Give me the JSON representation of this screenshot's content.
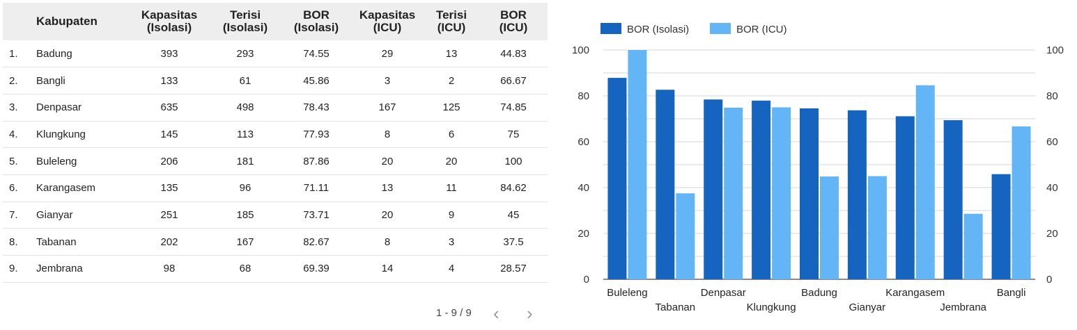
{
  "table": {
    "headers": [
      {
        "key": "no",
        "label": ""
      },
      {
        "key": "kabupaten",
        "label": "Kabupaten"
      },
      {
        "key": "kap_iso",
        "label": "Kapasitas (Isolasi)"
      },
      {
        "key": "ter_iso",
        "label": "Terisi (Isolasi)"
      },
      {
        "key": "bor_iso",
        "label": "BOR (Isolasi)"
      },
      {
        "key": "kap_icu",
        "label": "Kapasitas (ICU)"
      },
      {
        "key": "ter_icu",
        "label": "Terisi (ICU)"
      },
      {
        "key": "bor_icu",
        "label": "BOR (ICU)"
      }
    ],
    "rows": [
      [
        "1.",
        "Badung",
        "393",
        "293",
        "74.55",
        "29",
        "13",
        "44.83"
      ],
      [
        "2.",
        "Bangli",
        "133",
        "61",
        "45.86",
        "3",
        "2",
        "66.67"
      ],
      [
        "3.",
        "Denpasar",
        "635",
        "498",
        "78.43",
        "167",
        "125",
        "74.85"
      ],
      [
        "4.",
        "Klungkung",
        "145",
        "113",
        "77.93",
        "8",
        "6",
        "75"
      ],
      [
        "5.",
        "Buleleng",
        "206",
        "181",
        "87.86",
        "20",
        "20",
        "100"
      ],
      [
        "6.",
        "Karangasem",
        "135",
        "96",
        "71.11",
        "13",
        "11",
        "84.62"
      ],
      [
        "7.",
        "Gianyar",
        "251",
        "185",
        "73.71",
        "20",
        "9",
        "45"
      ],
      [
        "8.",
        "Tabanan",
        "202",
        "167",
        "82.67",
        "8",
        "3",
        "37.5"
      ],
      [
        "9.",
        "Jembrana",
        "98",
        "68",
        "69.39",
        "14",
        "4",
        "28.57"
      ]
    ]
  },
  "pagination": {
    "label": "1 - 9 / 9",
    "prev_icon": "chevron-left-icon",
    "next_icon": "chevron-right-icon"
  },
  "chart_data": {
    "type": "bar",
    "categories": [
      "Buleleng",
      "Tabanan",
      "Denpasar",
      "Klungkung",
      "Badung",
      "Gianyar",
      "Karangasem",
      "Jembrana",
      "Bangli"
    ],
    "series": [
      {
        "name": "BOR (Isolasi)",
        "values": [
          87.86,
          82.67,
          78.43,
          77.93,
          74.55,
          73.71,
          71.11,
          69.39,
          45.86
        ],
        "color": "#1565c0"
      },
      {
        "name": "BOR (ICU)",
        "values": [
          100,
          37.5,
          74.85,
          75,
          44.83,
          45,
          84.62,
          28.57,
          66.67
        ],
        "color": "#64b5f6"
      }
    ],
    "ylim": [
      0,
      100
    ],
    "yticks": [
      0,
      20,
      40,
      60,
      80,
      100
    ],
    "right_axis_ticks": [
      0,
      20,
      40,
      60,
      80,
      100
    ],
    "grid": true,
    "legend_position": "top-left"
  }
}
